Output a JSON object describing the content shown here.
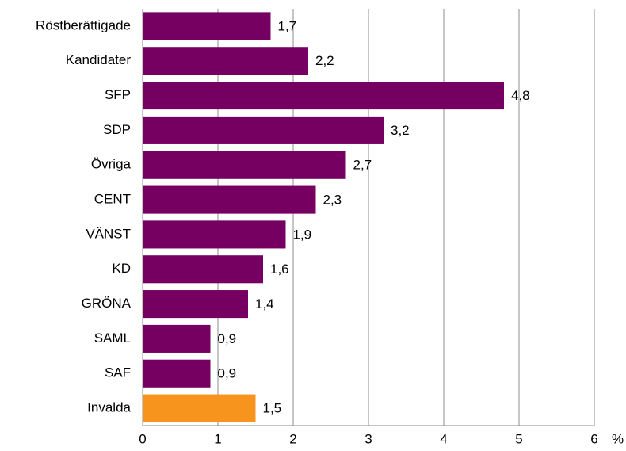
{
  "chart_data": {
    "type": "bar",
    "orientation": "horizontal",
    "categories": [
      "Röstberättigade",
      "Kandidater",
      "SFP",
      "SDP",
      "Övriga",
      "CENT",
      "VÄNST",
      "KD",
      "GRÖNA",
      "SAML",
      "SAF",
      "Invalda"
    ],
    "values": [
      1.7,
      2.2,
      4.8,
      3.2,
      2.7,
      2.3,
      1.9,
      1.6,
      1.4,
      0.9,
      0.9,
      1.5
    ],
    "value_labels": [
      "1,7",
      "2,2",
      "4,8",
      "3,2",
      "2,7",
      "2,3",
      "1,9",
      "1,6",
      "1,4",
      "0,9",
      "0,9",
      "1,5"
    ],
    "colors": [
      "#760061",
      "#760061",
      "#760061",
      "#760061",
      "#760061",
      "#760061",
      "#760061",
      "#760061",
      "#760061",
      "#760061",
      "#760061",
      "#f7941d"
    ],
    "xlim": [
      0,
      6
    ],
    "xticks": [
      0,
      1,
      2,
      3,
      4,
      5,
      6
    ],
    "xlabel": "%",
    "grid": true
  }
}
